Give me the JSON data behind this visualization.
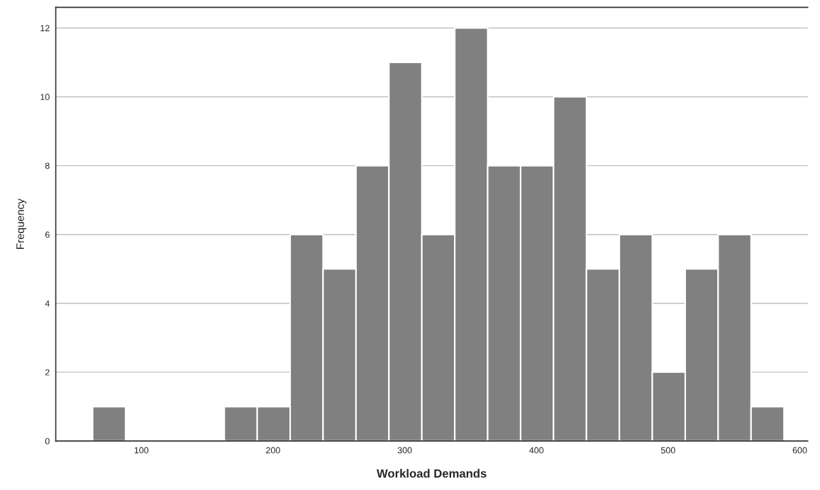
{
  "chart_data": {
    "type": "histogram",
    "xlabel": "Workload Demands",
    "ylabel": "Frequency",
    "bins": [
      63,
      88,
      113,
      138,
      163,
      188,
      213,
      238,
      263,
      288,
      313,
      338,
      363,
      388,
      413,
      438,
      463,
      488,
      513,
      538,
      563,
      588
    ],
    "values": [
      1,
      0,
      0,
      0,
      1,
      1,
      6,
      5,
      8,
      11,
      6,
      12,
      8,
      8,
      10,
      5,
      6,
      2,
      5,
      6,
      1
    ],
    "color": "#808080",
    "xlim": [
      35,
      606
    ],
    "xticks": [
      100,
      200,
      300,
      400,
      500,
      600
    ],
    "ylim": [
      0,
      12.6
    ],
    "yticks": [
      0,
      2,
      4,
      6,
      8,
      10,
      12
    ],
    "grid": "y"
  }
}
